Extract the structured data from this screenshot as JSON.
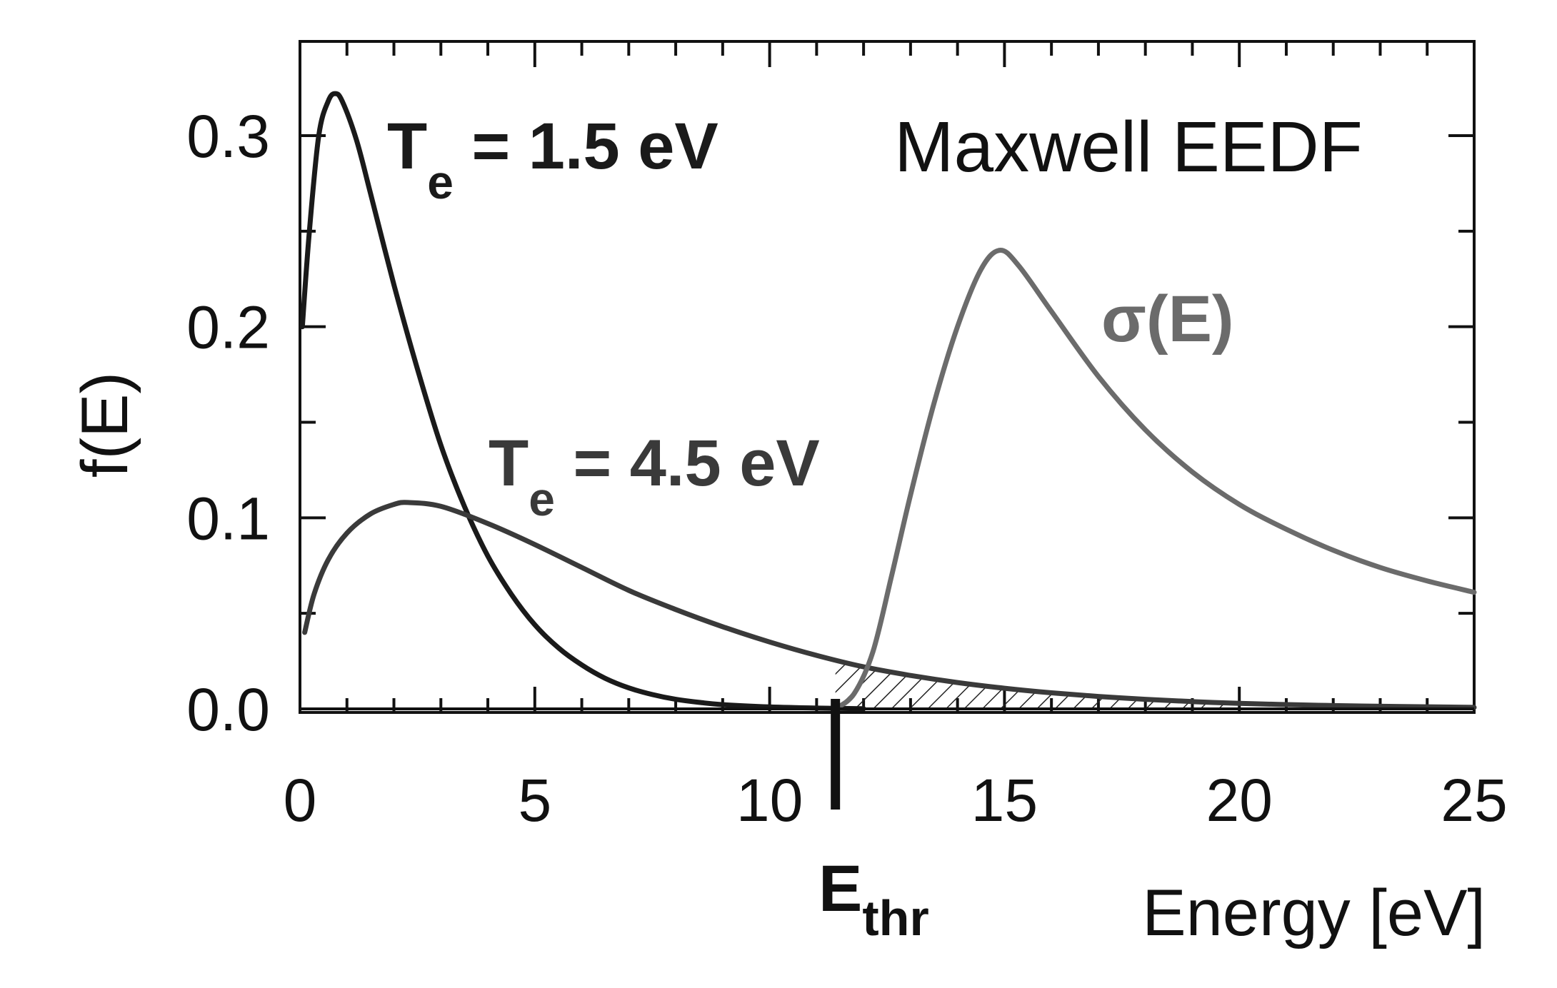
{
  "chart_data": {
    "type": "line",
    "title": "Maxwell EEDF",
    "xlabel": "Energy [eV]",
    "ylabel": "f(E)",
    "xlim": [
      0,
      25
    ],
    "ylim": [
      0,
      0.34
    ],
    "x_ticks": [
      0,
      5,
      10,
      15,
      20,
      25
    ],
    "x_tick_labels": [
      "0",
      "5",
      "10",
      "15",
      "20",
      "25"
    ],
    "y_ticks": [
      0.0,
      0.1,
      0.2,
      0.3
    ],
    "y_tick_labels": [
      "0.0",
      "0.1",
      "0.2",
      "0.3"
    ],
    "threshold": {
      "x": 11.4,
      "label_main": "E",
      "label_sub": "thr"
    },
    "shaded_region": "area under T_e = 4.5 eV curve for E > E_thr (hatched)",
    "series": [
      {
        "name": "T_e = 1.5 eV",
        "label_main": "T",
        "label_sub": "e",
        "label_rest": " = 1.5 eV",
        "color": "#1a1a1a",
        "x": [
          0.05,
          0.2,
          0.4,
          0.6,
          0.75,
          0.9,
          1.2,
          1.5,
          2.0,
          2.5,
          3.0,
          3.5,
          4.0,
          4.5,
          5.0,
          5.5,
          6.0,
          6.5,
          7.0,
          7.5,
          8.0,
          8.5,
          9.0,
          10.0,
          11.0,
          12.0
        ],
        "y": [
          0.2,
          0.25,
          0.3,
          0.318,
          0.322,
          0.318,
          0.298,
          0.27,
          0.222,
          0.178,
          0.138,
          0.106,
          0.08,
          0.06,
          0.044,
          0.032,
          0.023,
          0.016,
          0.011,
          0.0075,
          0.005,
          0.0034,
          0.0022,
          0.001,
          0.0004,
          0.0001
        ]
      },
      {
        "name": "T_e = 4.5 eV",
        "label_main": "T",
        "label_sub": "e",
        "label_rest": " = 4.5 eV",
        "color": "#3a3a3a",
        "x": [
          0.1,
          0.3,
          0.6,
          1.0,
          1.5,
          2.0,
          2.3,
          3.0,
          4.0,
          5.0,
          6.0,
          7.0,
          8.0,
          9.0,
          10.0,
          11.0,
          12.0,
          13.0,
          14.0,
          15.0,
          16.0,
          17.0,
          18.0,
          19.0,
          20.0,
          22.0,
          25.0
        ],
        "y": [
          0.04,
          0.06,
          0.078,
          0.092,
          0.102,
          0.107,
          0.108,
          0.106,
          0.097,
          0.086,
          0.074,
          0.062,
          0.052,
          0.043,
          0.035,
          0.028,
          0.022,
          0.0175,
          0.0138,
          0.0108,
          0.0084,
          0.0065,
          0.005,
          0.0038,
          0.0029,
          0.0017,
          0.0008
        ]
      },
      {
        "name": "σ(E)",
        "label_main": "σ(E)",
        "color": "#6b6b6b",
        "x": [
          11.4,
          11.8,
          12.2,
          12.6,
          13.0,
          13.5,
          14.0,
          14.5,
          14.9,
          15.3,
          16.0,
          17.0,
          18.0,
          19.0,
          20.0,
          21.0,
          22.0,
          23.0,
          24.0,
          25.0
        ],
        "y": [
          0.0,
          0.008,
          0.03,
          0.07,
          0.112,
          0.16,
          0.2,
          0.23,
          0.24,
          0.232,
          0.208,
          0.174,
          0.146,
          0.124,
          0.107,
          0.094,
          0.083,
          0.074,
          0.067,
          0.061
        ]
      }
    ]
  }
}
